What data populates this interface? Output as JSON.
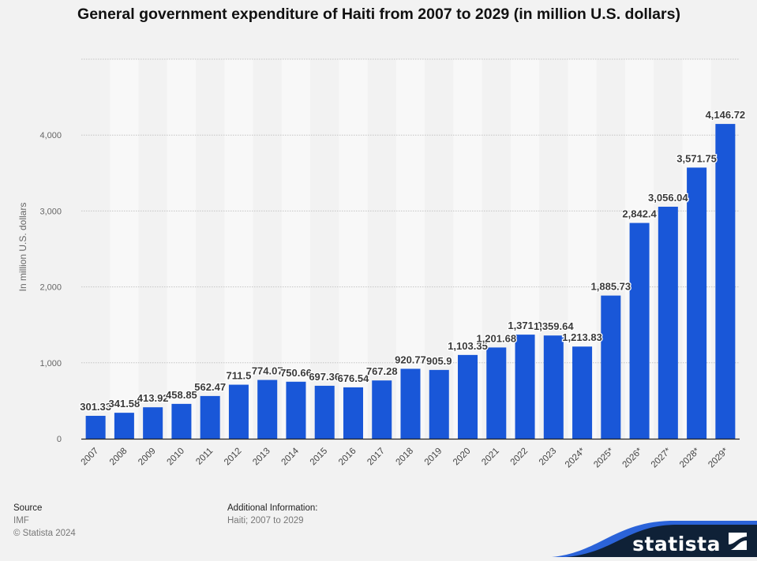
{
  "chart_data": {
    "type": "bar",
    "title": "General government expenditure of Haiti from 2007 to 2029 (in million U.S. dollars)",
    "xlabel": "",
    "ylabel": "In million U.S. dollars",
    "ylim": [
      0,
      5000
    ],
    "yticks": [
      0,
      1000,
      2000,
      3000,
      4000
    ],
    "ytick_labels": [
      "0",
      "1,000",
      "2,000",
      "3,000",
      "4,000"
    ],
    "grid": true,
    "legend": "none",
    "bar_color": "#1957d8",
    "categories": [
      "2007",
      "2008",
      "2009",
      "2010",
      "2011",
      "2012",
      "2013",
      "2014",
      "2015",
      "2016",
      "2017",
      "2018",
      "2019",
      "2020",
      "2021",
      "2022",
      "2023",
      "2024*",
      "2025*",
      "2026*",
      "2027*",
      "2028*",
      "2029*"
    ],
    "values": [
      301.33,
      341.58,
      413.92,
      458.85,
      562.47,
      711.5,
      774.07,
      750.66,
      697.36,
      676.54,
      767.28,
      920.77,
      905.9,
      1103.35,
      1201.68,
      1371.0,
      1359.64,
      1213.83,
      1885.73,
      2842.4,
      3056.04,
      3571.75,
      4146.72
    ],
    "data_labels": [
      "301.33",
      "341.58",
      "413.92",
      "458.85",
      "562.47",
      "711.5",
      "774.07",
      "750.66",
      "697.36",
      "676.54",
      "767.28",
      "920.77",
      "905.9",
      "1,103.35",
      "1,201.68",
      "1,371.0",
      "1,359.64",
      "1,213.83",
      "1,885.73",
      "2,842.4",
      "3,056.04",
      "3,571.75",
      "4,146.72"
    ]
  },
  "footer": {
    "source_heading": "Source",
    "source_name": "IMF",
    "copyright": "© Statista 2024",
    "additional_heading": "Additional Information:",
    "additional_text": "Haiti; 2007 to 2029"
  },
  "brand": {
    "name": "statista",
    "colors": {
      "dark": "#0f2137",
      "accent": "#2b63d9"
    }
  }
}
